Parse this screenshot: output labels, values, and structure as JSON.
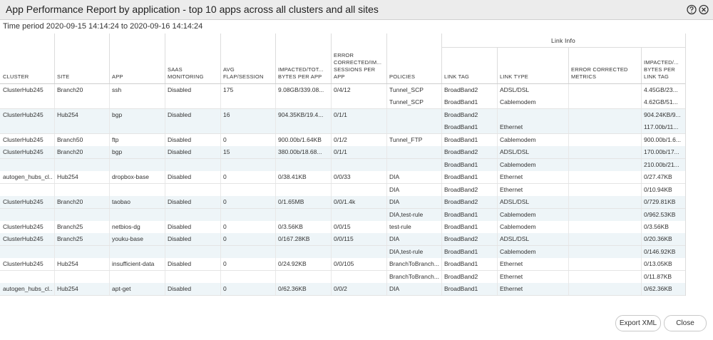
{
  "header": {
    "title": "App Performance Report by application - top 10 apps across all clusters and all sites"
  },
  "time_period": "Time period 2020-09-15 14:14:24 to 2020-09-16 14:14:24",
  "table": {
    "group_header": "Link Info",
    "columns": [
      [
        "CLUSTER"
      ],
      [
        "SITE"
      ],
      [
        "APP"
      ],
      [
        "SAAS",
        "MONITORING"
      ],
      [
        "AVG",
        "FLAP/SESSION"
      ],
      [
        "IMPACTED/TOT...",
        "BYTES PER APP"
      ],
      [
        "ERROR",
        "CORRECTED/IM...",
        "SESSIONS PER",
        "APP"
      ],
      [
        "POLICIES"
      ],
      [
        "LINK TAG"
      ],
      [
        "LINK TYPE"
      ],
      [
        "ERROR CORRECTED",
        "METRICS"
      ],
      [
        "IMPACTED/...",
        "BYTES PER",
        "LINK TAG"
      ]
    ],
    "rows": [
      [
        "ClusterHub245",
        "Branch20",
        "ssh",
        "Disabled",
        "175",
        "9.08GB/339.08...",
        "0/4/12",
        "Tunnel_SCP",
        "BroadBand2",
        "ADSL/DSL",
        null,
        "4.45GB/23..."
      ],
      [
        null,
        null,
        null,
        null,
        null,
        null,
        null,
        "Tunnel_SCP",
        "BroadBand1",
        "Cablemodem",
        null,
        "4.62GB/51..."
      ],
      [
        "ClusterHub245",
        "Hub254",
        "bgp",
        "Disabled",
        "16",
        "904.35KB/19.4...",
        "0/1/1",
        null,
        "BroadBand2",
        null,
        null,
        "904.24KB/9..."
      ],
      [
        null,
        null,
        null,
        null,
        null,
        null,
        null,
        null,
        "BroadBand1",
        "Ethernet",
        null,
        "117.00b/11..."
      ],
      [
        "ClusterHub245",
        "Branch50",
        "ftp",
        "Disabled",
        "0",
        "900.00b/1.64KB",
        "0/1/2",
        "Tunnel_FTP",
        "BroadBand1",
        "Cablemodem",
        null,
        "900.00b/1.6..."
      ],
      [
        "ClusterHub245",
        "Branch20",
        "bgp",
        "Disabled",
        "15",
        "380.00b/18.68...",
        "0/1/1",
        null,
        "BroadBand2",
        "ADSL/DSL",
        null,
        "170.00b/17..."
      ],
      [
        null,
        null,
        null,
        null,
        null,
        null,
        null,
        null,
        "BroadBand1",
        "Cablemodem",
        null,
        "210.00b/21..."
      ],
      [
        "autogen_hubs_cl...",
        "Hub254",
        "dropbox-base",
        "Disabled",
        "0",
        "0/38.41KB",
        "0/0/33",
        "DIA",
        "BroadBand1",
        "Ethernet",
        null,
        "0/27.47KB"
      ],
      [
        null,
        null,
        null,
        null,
        null,
        null,
        null,
        "DIA",
        "BroadBand2",
        "Ethernet",
        null,
        "0/10.94KB"
      ],
      [
        "ClusterHub245",
        "Branch20",
        "taobao",
        "Disabled",
        "0",
        "0/1.65MB",
        "0/0/1.4k",
        "DIA",
        "BroadBand2",
        "ADSL/DSL",
        null,
        "0/729.81KB"
      ],
      [
        null,
        null,
        null,
        null,
        null,
        null,
        null,
        "DIA,test-rule",
        "BroadBand1",
        "Cablemodem",
        null,
        "0/962.53KB"
      ],
      [
        "ClusterHub245",
        "Branch25",
        "netbios-dg",
        "Disabled",
        "0",
        "0/3.56KB",
        "0/0/15",
        "test-rule",
        "BroadBand1",
        "Cablemodem",
        null,
        "0/3.56KB"
      ],
      [
        "ClusterHub245",
        "Branch25",
        "youku-base",
        "Disabled",
        "0",
        "0/167.28KB",
        "0/0/115",
        "DIA",
        "BroadBand2",
        "ADSL/DSL",
        null,
        "0/20.36KB"
      ],
      [
        null,
        null,
        null,
        null,
        null,
        null,
        null,
        "DIA,test-rule",
        "BroadBand1",
        "Cablemodem",
        null,
        "0/146.92KB"
      ],
      [
        "ClusterHub245",
        "Hub254",
        "insufficient-data",
        "Disabled",
        "0",
        "0/24.92KB",
        "0/0/105",
        "BranchToBranch...",
        "BroadBand1",
        "Ethernet",
        null,
        "0/13.05KB"
      ],
      [
        null,
        null,
        null,
        null,
        null,
        null,
        null,
        "BranchToBranch...",
        "BroadBand2",
        "Ethernet",
        null,
        "0/11.87KB"
      ],
      [
        "autogen_hubs_cl...",
        "Hub254",
        "apt-get",
        "Disabled",
        "0",
        "0/62.36KB",
        "0/0/2",
        "DIA",
        "BroadBand1",
        "Ethernet",
        null,
        "0/62.36KB"
      ]
    ]
  },
  "buttons": {
    "export": "Export XML",
    "close": "Close"
  }
}
